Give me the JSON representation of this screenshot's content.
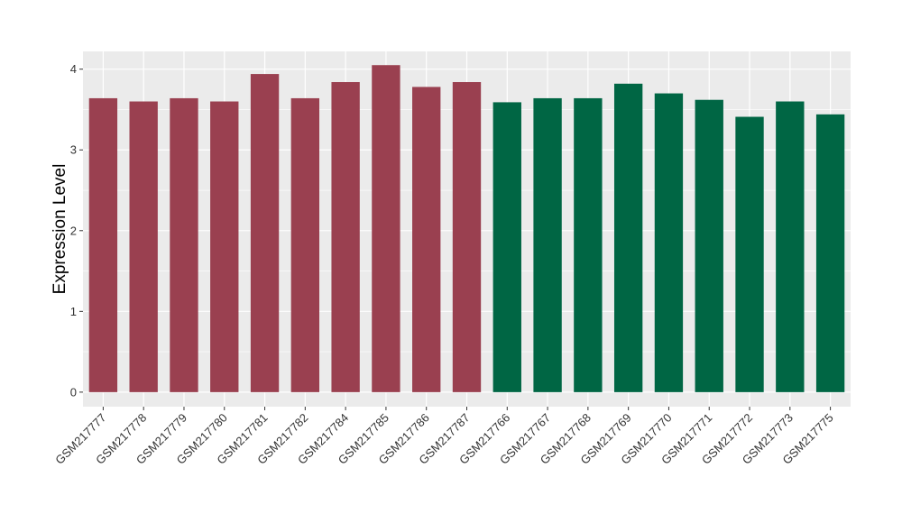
{
  "chart_data": {
    "type": "bar",
    "title": "",
    "xlabel": "",
    "ylabel": "Expression Level",
    "ylim": [
      -0.18,
      4.22
    ],
    "yticks": [
      0,
      1,
      2,
      3,
      4
    ],
    "grid": true,
    "legend": "none",
    "categories": [
      "GSM217777",
      "GSM217778",
      "GSM217779",
      "GSM217780",
      "GSM217781",
      "GSM217782",
      "GSM217784",
      "GSM217785",
      "GSM217786",
      "GSM217787",
      "GSM217766",
      "GSM217767",
      "GSM217768",
      "GSM217769",
      "GSM217770",
      "GSM217771",
      "GSM217772",
      "GSM217773",
      "GSM217775"
    ],
    "values": [
      3.64,
      3.6,
      3.64,
      3.6,
      3.94,
      3.64,
      3.84,
      4.05,
      3.78,
      3.84,
      3.59,
      3.64,
      3.64,
      3.82,
      3.7,
      3.62,
      3.41,
      3.6,
      3.44
    ],
    "groups": [
      0,
      0,
      0,
      0,
      0,
      0,
      0,
      0,
      0,
      0,
      1,
      1,
      1,
      1,
      1,
      1,
      1,
      1,
      1
    ],
    "group_colors": [
      "#9a4050",
      "#006644"
    ],
    "panel_color": "#ebebeb",
    "grid_color": "#ffffff"
  }
}
